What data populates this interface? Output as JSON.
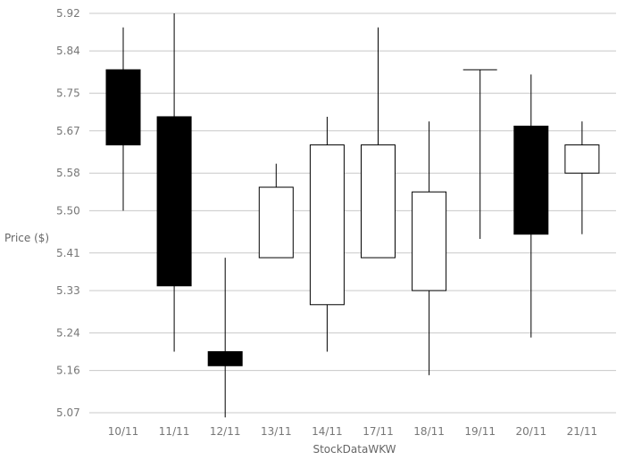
{
  "chart_data": {
    "type": "candlestick",
    "title": "",
    "xlabel": "StockDataWKW",
    "ylabel": "Price ($)",
    "ylim": [
      5.07,
      5.92
    ],
    "yticks": [
      "5.07",
      "5.16",
      "5.24",
      "5.33",
      "5.41",
      "5.50",
      "5.58",
      "5.67",
      "5.75",
      "5.84",
      "5.92"
    ],
    "grid": true,
    "up_color": "#ffffff",
    "down_color": "#000000",
    "candles": [
      {
        "date": "10/11",
        "open": 5.8,
        "high": 5.89,
        "low": 5.5,
        "close": 5.64
      },
      {
        "date": "11/11",
        "open": 5.7,
        "high": 5.92,
        "low": 5.2,
        "close": 5.34
      },
      {
        "date": "12/11",
        "open": 5.2,
        "high": 5.4,
        "low": 5.06,
        "close": 5.17
      },
      {
        "date": "13/11",
        "open": 5.4,
        "high": 5.6,
        "low": 5.4,
        "close": 5.55
      },
      {
        "date": "14/11",
        "open": 5.3,
        "high": 5.7,
        "low": 5.2,
        "close": 5.64
      },
      {
        "date": "17/11",
        "open": 5.4,
        "high": 5.89,
        "low": 5.4,
        "close": 5.64
      },
      {
        "date": "18/11",
        "open": 5.33,
        "high": 5.69,
        "low": 5.15,
        "close": 5.54
      },
      {
        "date": "19/11",
        "open": 5.8,
        "high": 5.8,
        "low": 5.44,
        "close": 5.8
      },
      {
        "date": "20/11",
        "open": 5.68,
        "high": 5.79,
        "low": 5.23,
        "close": 5.45
      },
      {
        "date": "21/11",
        "open": 5.58,
        "high": 5.69,
        "low": 5.45,
        "close": 5.64
      }
    ]
  }
}
